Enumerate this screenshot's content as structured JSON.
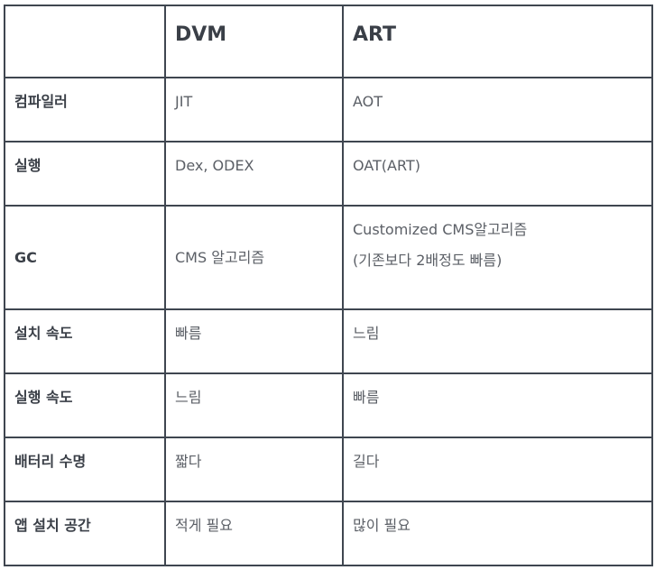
{
  "table": {
    "header": [
      "",
      "DVM",
      "ART"
    ],
    "rows": [
      {
        "label": "컴파일러",
        "dvm": [
          "JIT"
        ],
        "art": [
          "AOT"
        ]
      },
      {
        "label": "실행",
        "dvm": [
          "Dex, ODEX"
        ],
        "art": [
          "OAT(ART)"
        ]
      },
      {
        "label": "GC",
        "dvm": [
          "CMS 알고리즘"
        ],
        "art": [
          "Customized CMS알고리즘",
          "(기존보다 2배정도 빠름)"
        ]
      },
      {
        "label": "설치 속도",
        "dvm": [
          "빠름"
        ],
        "art": [
          "느림"
        ]
      },
      {
        "label": "실행 속도",
        "dvm": [
          "느림"
        ],
        "art": [
          "빠름"
        ]
      },
      {
        "label": "배터리 수명",
        "dvm": [
          "짧다"
        ],
        "art": [
          "길다"
        ]
      },
      {
        "label": "앱 설치 공간",
        "dvm": [
          "적게 필요"
        ],
        "art": [
          "많이 필요"
        ]
      }
    ]
  }
}
